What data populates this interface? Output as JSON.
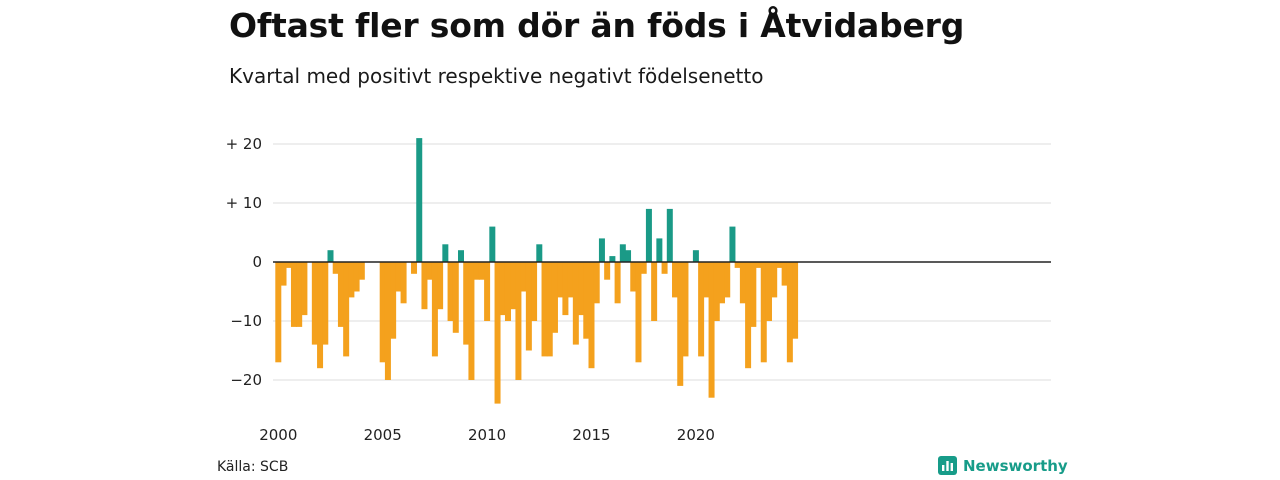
{
  "title": "Oftast fler som dör än föds i Åtvidaberg",
  "subtitle": "Kvartal med positivt respektive negativt födelsenetto",
  "source": "Källa: SCB",
  "brand": "Newsworthy",
  "colors": {
    "positive": "#1a9a87",
    "negative": "#f4a11d",
    "grid": "#dddddd",
    "axis": "#222222"
  },
  "chart_data": {
    "type": "bar",
    "start_year": 2000,
    "ylim": [
      -24,
      21
    ],
    "yticks": [
      20,
      10,
      0,
      -10,
      -20
    ],
    "ytick_labels": [
      "+ 20",
      "+ 10",
      "0",
      "−10",
      "−20"
    ],
    "xtick_labels": [
      "2000",
      "2005",
      "2010",
      "2015",
      "2020"
    ],
    "xtick_years": [
      2000,
      2005,
      2010,
      2015,
      2020
    ],
    "values": [
      -17,
      -4,
      -1,
      -11,
      -11,
      -9,
      0,
      -14,
      -18,
      -14,
      2,
      -2,
      -11,
      -16,
      -6,
      -5,
      -3,
      0,
      0,
      0,
      -17,
      -20,
      -13,
      -5,
      -7,
      0,
      -2,
      21,
      -8,
      -3,
      -16,
      -8,
      3,
      -10,
      -12,
      2,
      -14,
      -20,
      -3,
      -3,
      -10,
      6,
      -24,
      -9,
      -10,
      -8,
      -20,
      -5,
      -15,
      -10,
      3,
      -16,
      -16,
      -12,
      -6,
      -9,
      -6,
      -14,
      -9,
      -13,
      -18,
      -7,
      4,
      -3,
      1,
      -7,
      3,
      2,
      -5,
      -17,
      -2,
      9,
      -10,
      4,
      -2,
      9,
      -6,
      -21,
      -16,
      0,
      2,
      -16,
      -6,
      -23,
      -10,
      -7,
      -6,
      6,
      -1,
      -7,
      -18,
      -11,
      -1,
      -17,
      -10,
      -6,
      -1,
      -4,
      -17,
      -13
    ]
  }
}
